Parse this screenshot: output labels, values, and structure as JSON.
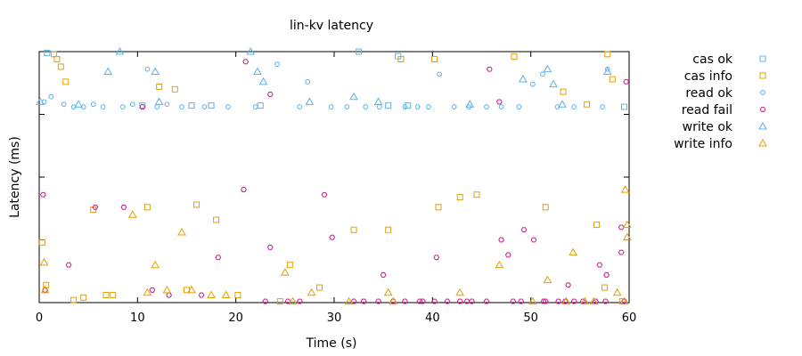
{
  "chart_data": {
    "type": "scatter",
    "title": "lin-kv latency",
    "xlabel": "Time (s)",
    "ylabel": "Latency (ms)",
    "xlim": [
      0,
      60
    ],
    "x_ticks": [
      "0",
      "10",
      "20",
      "30",
      "40",
      "50",
      "60"
    ],
    "y_ticks": [],
    "grid": false,
    "legend_position": "right",
    "series": [
      {
        "name": "cas ok",
        "color": "#56b4e9",
        "marker": "square",
        "points": [
          [
            0.8,
            0.995
          ],
          [
            32.5,
            1.0
          ],
          [
            36.5,
            0.982
          ],
          [
            10.5,
            0.785
          ],
          [
            15.5,
            0.785
          ],
          [
            17.5,
            0.785
          ],
          [
            22.5,
            0.785
          ],
          [
            35.5,
            0.785
          ],
          [
            37.5,
            0.785
          ],
          [
            59.5,
            0.78
          ]
        ]
      },
      {
        "name": "cas info",
        "color": "#e69f00",
        "marker": "square",
        "points": [
          [
            0.3,
            0.24
          ],
          [
            0.7,
            0.07
          ],
          [
            1.5,
            0.99
          ],
          [
            1.8,
            0.97
          ],
          [
            2.2,
            0.94
          ],
          [
            2.7,
            0.88
          ],
          [
            3.5,
            0.01
          ],
          [
            4.5,
            0.02
          ],
          [
            5.5,
            0.37
          ],
          [
            6.8,
            0.03
          ],
          [
            7.5,
            0.03
          ],
          [
            11.0,
            0.38
          ],
          [
            12.2,
            0.86
          ],
          [
            13.8,
            0.85
          ],
          [
            15.0,
            0.05
          ],
          [
            16.0,
            0.39
          ],
          [
            18.0,
            0.33
          ],
          [
            20.2,
            0.03
          ],
          [
            24.5,
            0.005
          ],
          [
            25.5,
            0.15
          ],
          [
            28.5,
            0.06
          ],
          [
            32.0,
            0.29
          ],
          [
            35.5,
            0.29
          ],
          [
            36.8,
            0.97
          ],
          [
            40.2,
            0.97
          ],
          [
            40.6,
            0.38
          ],
          [
            42.8,
            0.42
          ],
          [
            44.5,
            0.43
          ],
          [
            48.3,
            0.98
          ],
          [
            51.5,
            0.38
          ],
          [
            53.3,
            0.84
          ],
          [
            55.7,
            0.79
          ],
          [
            56.7,
            0.31
          ],
          [
            57.8,
            0.99
          ],
          [
            58.3,
            0.89
          ],
          [
            59.3,
            0.005
          ],
          [
            57.5,
            0.06
          ]
        ]
      },
      {
        "name": "read ok",
        "color": "#56b4e9",
        "marker": "circle",
        "points": [
          [
            0.5,
            0.8
          ],
          [
            1.2,
            0.82
          ],
          [
            2.5,
            0.79
          ],
          [
            3.5,
            0.78
          ],
          [
            4.5,
            0.78
          ],
          [
            5.5,
            0.79
          ],
          [
            6.5,
            0.78
          ],
          [
            8.5,
            0.78
          ],
          [
            9.5,
            0.79
          ],
          [
            11.0,
            0.93
          ],
          [
            12.0,
            0.78
          ],
          [
            13.0,
            0.79
          ],
          [
            14.5,
            0.78
          ],
          [
            16.8,
            0.78
          ],
          [
            19.2,
            0.78
          ],
          [
            22.0,
            0.78
          ],
          [
            24.2,
            0.95
          ],
          [
            26.5,
            0.78
          ],
          [
            27.3,
            0.88
          ],
          [
            29.7,
            0.78
          ],
          [
            31.3,
            0.78
          ],
          [
            33.2,
            0.78
          ],
          [
            34.6,
            0.78
          ],
          [
            37.2,
            0.78
          ],
          [
            38.5,
            0.78
          ],
          [
            39.6,
            0.78
          ],
          [
            40.7,
            0.91
          ],
          [
            42.2,
            0.78
          ],
          [
            43.7,
            0.78
          ],
          [
            45.5,
            0.78
          ],
          [
            47.0,
            0.78
          ],
          [
            48.8,
            0.78
          ],
          [
            50.2,
            0.87
          ],
          [
            51.2,
            0.91
          ],
          [
            52.7,
            0.78
          ],
          [
            54.4,
            0.78
          ],
          [
            57.3,
            0.78
          ],
          [
            57.8,
            0.93
          ]
        ]
      },
      {
        "name": "read fail",
        "color": "#cc1f8f",
        "marker": "hexagon",
        "points": [
          [
            0.4,
            0.43
          ],
          [
            0.6,
            0.05
          ],
          [
            3.0,
            0.15
          ],
          [
            5.7,
            0.38
          ],
          [
            8.6,
            0.38
          ],
          [
            10.5,
            0.78
          ],
          [
            11.5,
            0.05
          ],
          [
            13.2,
            0.03
          ],
          [
            16.5,
            0.03
          ],
          [
            18.2,
            0.18
          ],
          [
            20.8,
            0.45
          ],
          [
            21.0,
            0.96
          ],
          [
            23.0,
            0.005
          ],
          [
            23.5,
            0.22
          ],
          [
            23.5,
            0.83
          ],
          [
            25.3,
            0.005
          ],
          [
            26.5,
            0.005
          ],
          [
            29.0,
            0.43
          ],
          [
            29.8,
            0.26
          ],
          [
            32.0,
            0.005
          ],
          [
            33.0,
            0.005
          ],
          [
            34.5,
            0.005
          ],
          [
            35.0,
            0.11
          ],
          [
            36.0,
            0.005
          ],
          [
            37.2,
            0.005
          ],
          [
            38.7,
            0.005
          ],
          [
            39.0,
            0.005
          ],
          [
            40.2,
            0.005
          ],
          [
            40.4,
            0.18
          ],
          [
            41.5,
            0.005
          ],
          [
            42.8,
            0.005
          ],
          [
            43.5,
            0.005
          ],
          [
            44.0,
            0.005
          ],
          [
            45.5,
            0.005
          ],
          [
            45.8,
            0.93
          ],
          [
            46.8,
            0.8
          ],
          [
            47.0,
            0.25
          ],
          [
            47.7,
            0.19
          ],
          [
            48.2,
            0.005
          ],
          [
            49.0,
            0.005
          ],
          [
            49.3,
            0.29
          ],
          [
            50.3,
            0.25
          ],
          [
            51.3,
            0.005
          ],
          [
            51.5,
            0.005
          ],
          [
            52.8,
            0.005
          ],
          [
            53.5,
            0.005
          ],
          [
            53.8,
            0.07
          ],
          [
            54.4,
            0.005
          ],
          [
            55.3,
            0.005
          ],
          [
            56.6,
            0.005
          ],
          [
            57.0,
            0.15
          ],
          [
            57.7,
            0.11
          ],
          [
            57.6,
            0.005
          ],
          [
            59.2,
            0.2
          ],
          [
            59.2,
            0.3
          ],
          [
            59.7,
            0.88
          ],
          [
            59.5,
            0.005
          ]
        ]
      },
      {
        "name": "write ok",
        "color": "#56b4e9",
        "marker": "triangle",
        "points": [
          [
            0.1,
            0.8
          ],
          [
            4.0,
            0.79
          ],
          [
            7.0,
            0.92
          ],
          [
            8.2,
            1.0
          ],
          [
            11.8,
            0.92
          ],
          [
            12.2,
            0.8
          ],
          [
            21.5,
            1.0
          ],
          [
            22.2,
            0.92
          ],
          [
            22.8,
            0.88
          ],
          [
            27.5,
            0.8
          ],
          [
            32.0,
            0.82
          ],
          [
            34.5,
            0.8
          ],
          [
            43.8,
            0.79
          ],
          [
            49.2,
            0.89
          ],
          [
            51.7,
            0.93
          ],
          [
            52.3,
            0.87
          ],
          [
            53.2,
            0.79
          ],
          [
            57.8,
            0.92
          ]
        ]
      },
      {
        "name": "write info",
        "color": "#e69f00",
        "marker": "triangle",
        "points": [
          [
            0.5,
            0.16
          ],
          [
            0.6,
            0.05
          ],
          [
            9.5,
            0.35
          ],
          [
            11.0,
            0.04
          ],
          [
            11.8,
            0.15
          ],
          [
            13.0,
            0.05
          ],
          [
            14.5,
            0.28
          ],
          [
            15.5,
            0.05
          ],
          [
            17.5,
            0.03
          ],
          [
            19.0,
            0.03
          ],
          [
            25.0,
            0.12
          ],
          [
            25.8,
            0.005
          ],
          [
            27.7,
            0.04
          ],
          [
            31.5,
            0.005
          ],
          [
            35.5,
            0.04
          ],
          [
            36.0,
            0.005
          ],
          [
            42.8,
            0.04
          ],
          [
            46.8,
            0.15
          ],
          [
            50.2,
            0.005
          ],
          [
            51.7,
            0.09
          ],
          [
            53.6,
            0.005
          ],
          [
            54.3,
            0.2
          ],
          [
            55.5,
            0.005
          ],
          [
            56.4,
            0.005
          ],
          [
            58.8,
            0.04
          ],
          [
            59.5,
            0.005
          ],
          [
            59.6,
            0.45
          ],
          [
            59.8,
            0.31
          ],
          [
            59.8,
            0.26
          ]
        ]
      }
    ]
  }
}
